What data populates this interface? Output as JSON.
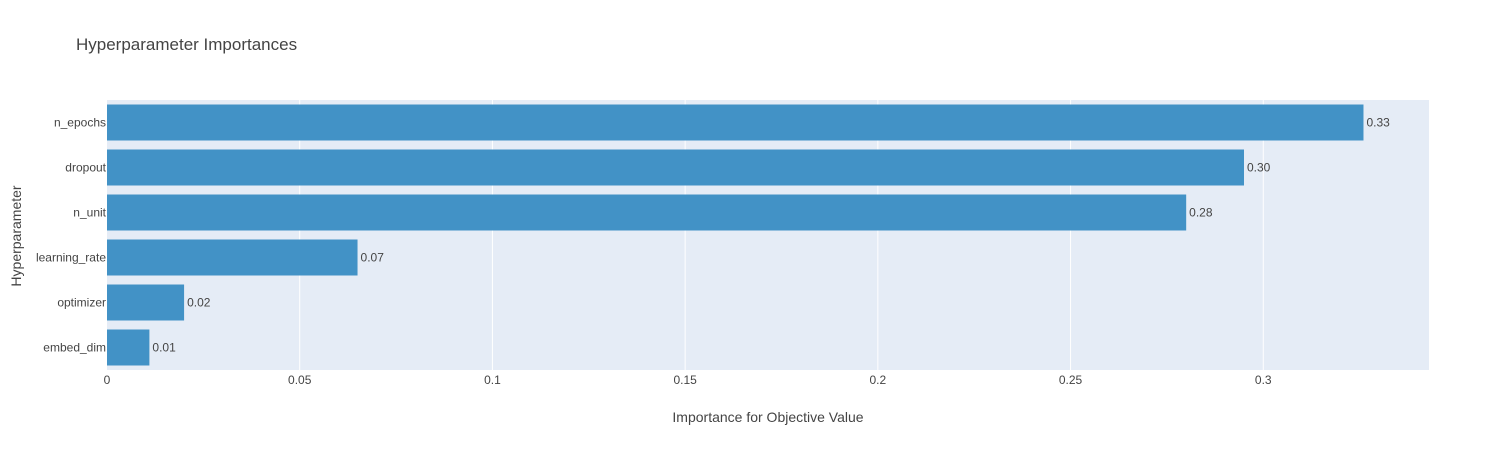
{
  "chart_data": {
    "type": "bar",
    "orientation": "horizontal",
    "title": "Hyperparameter Importances",
    "xlabel": "Importance for Objective Value",
    "ylabel": "Hyperparameter",
    "categories": [
      "n_epochs",
      "dropout",
      "n_unit",
      "learning_rate",
      "optimizer",
      "embed_dim"
    ],
    "values": [
      0.326,
      0.295,
      0.28,
      0.065,
      0.02,
      0.011
    ],
    "data_labels": [
      "0.33",
      "0.30",
      "0.28",
      "0.07",
      "0.02",
      "0.01"
    ],
    "xlim": [
      0,
      0.343
    ],
    "xticks": [
      0,
      0.05,
      0.1,
      0.15,
      0.2,
      0.25,
      0.3
    ],
    "xtick_labels": [
      "0",
      "0.05",
      "0.1",
      "0.15",
      "0.2",
      "0.25",
      "0.3"
    ],
    "grid": true,
    "legend": "none",
    "colors": {
      "bar": "#4292c6",
      "plot_background": "#e5ecf6",
      "grid": "#ffffff",
      "text": "#444444"
    }
  }
}
